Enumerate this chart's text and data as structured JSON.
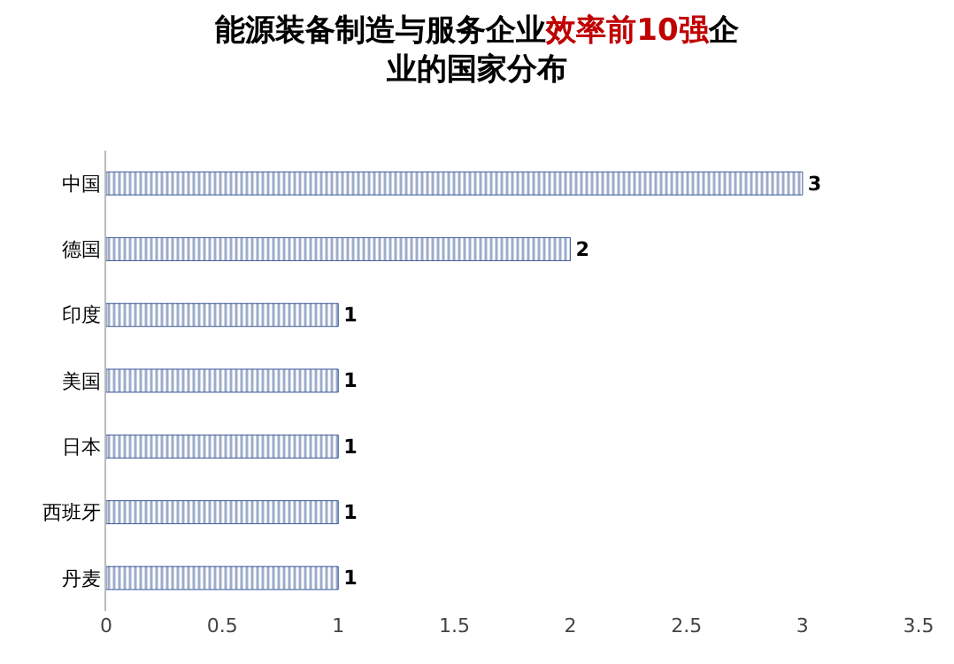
{
  "chart_data": {
    "type": "bar",
    "orientation": "horizontal",
    "title": "能源装备制造与服务企业效率前10强企业的国家分布",
    "categories": [
      "中国",
      "德国",
      "印度",
      "美国",
      "日本",
      "西班牙",
      "丹麦"
    ],
    "values": [
      3,
      2,
      1,
      1,
      1,
      1,
      1
    ],
    "color": "#3b5998",
    "data_labels": true,
    "xlim": [
      0,
      3.5
    ],
    "xticks": [
      0,
      0.5,
      1,
      1.5,
      2,
      2.5,
      3,
      3.5
    ]
  }
}
